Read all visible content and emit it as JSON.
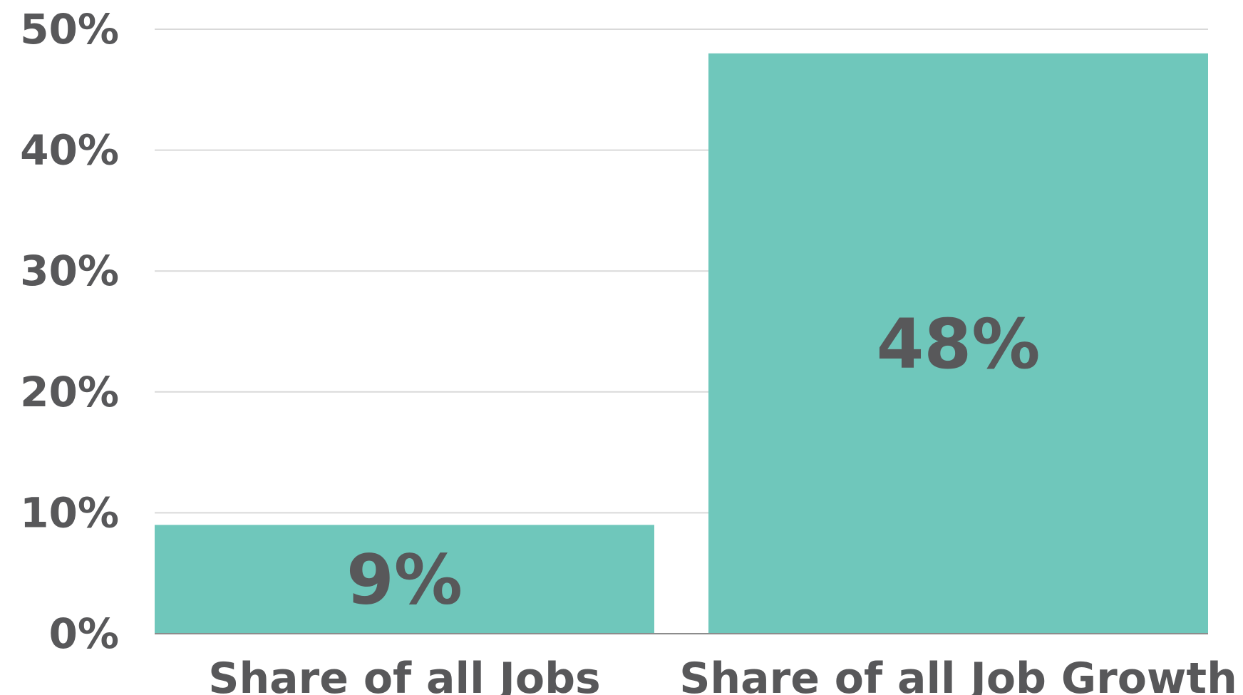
{
  "chart_data": {
    "type": "bar",
    "categories": [
      "Share of all Jobs",
      "Share of all Job Growth"
    ],
    "values": [
      9,
      48
    ],
    "data_labels": [
      "9%",
      "48%"
    ],
    "ylim": [
      0,
      50
    ],
    "y_ticks": [
      0,
      10,
      20,
      30,
      40,
      50
    ],
    "y_tick_labels": [
      "0%",
      "10%",
      "20%",
      "30%",
      "40%",
      "50%"
    ],
    "title": "",
    "xlabel": "",
    "ylabel": "",
    "grid": true,
    "legend": "none",
    "colors": {
      "bar": "#6fc7bb",
      "text": "#58585a",
      "grid": "#d9d9d9",
      "axis": "#8c8c8c"
    }
  }
}
